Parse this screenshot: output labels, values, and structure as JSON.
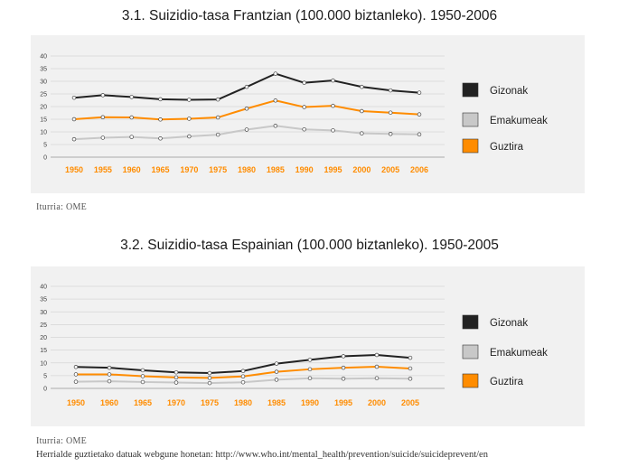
{
  "chart_data": [
    {
      "type": "line",
      "title": "3.1. Suizidio-tasa Frantzian (100.000 biztanleko). 1950-2006",
      "source": "Iturria: OME",
      "categories": [
        "1950",
        "1955",
        "1960",
        "1965",
        "1970",
        "1975",
        "1980",
        "1985",
        "1990",
        "1995",
        "2000",
        "2005",
        "2006"
      ],
      "ylim": [
        0,
        40
      ],
      "yticks": [
        0,
        5,
        10,
        15,
        20,
        25,
        30,
        35,
        40
      ],
      "legend_position": "right",
      "series": [
        {
          "name": "Gizonak",
          "color": "#222222",
          "values": [
            23.5,
            24.5,
            23.8,
            22.9,
            22.7,
            22.8,
            27.8,
            33.0,
            29.4,
            30.3,
            27.8,
            26.4,
            25.5
          ]
        },
        {
          "name": "Emakumeak",
          "color": "#c8c8c8",
          "values": [
            7.1,
            7.7,
            8.0,
            7.4,
            8.2,
            8.9,
            10.9,
            12.4,
            11.0,
            10.6,
            9.4,
            9.2,
            9.0
          ]
        },
        {
          "name": "Guztira",
          "color": "#ff8c00",
          "values": [
            15.0,
            15.8,
            15.7,
            14.9,
            15.2,
            15.7,
            19.2,
            22.4,
            19.8,
            20.3,
            18.2,
            17.6,
            16.9
          ]
        }
      ]
    },
    {
      "type": "line",
      "title": "3.2. Suizidio-tasa Espainian (100.000 biztanleko). 1950-2005",
      "source": "Iturria: OME",
      "categories": [
        "1950",
        "1960",
        "1965",
        "1970",
        "1975",
        "1980",
        "1985",
        "1990",
        "1995",
        "2000",
        "2005"
      ],
      "ylim": [
        0,
        40
      ],
      "yticks": [
        0,
        5,
        10,
        15,
        20,
        25,
        30,
        35,
        40
      ],
      "legend_position": "right",
      "series": [
        {
          "name": "Gizonak",
          "color": "#222222",
          "values": [
            8.4,
            8.1,
            7.1,
            6.3,
            6.0,
            6.8,
            9.7,
            11.2,
            12.6,
            13.1,
            12.0
          ]
        },
        {
          "name": "Emakumeak",
          "color": "#c8c8c8",
          "values": [
            2.6,
            2.8,
            2.5,
            2.3,
            2.1,
            2.4,
            3.4,
            4.0,
            3.8,
            4.0,
            3.8
          ]
        },
        {
          "name": "Guztira",
          "color": "#ff8c00",
          "values": [
            5.5,
            5.5,
            4.8,
            4.3,
            4.1,
            4.7,
            6.5,
            7.5,
            8.1,
            8.5,
            7.8
          ]
        }
      ]
    }
  ],
  "footer_note": "Herrialde guztietako datuak webgune honetan: http://www.who.int/mental_health/prevention/suicide/suicideprevent/en"
}
